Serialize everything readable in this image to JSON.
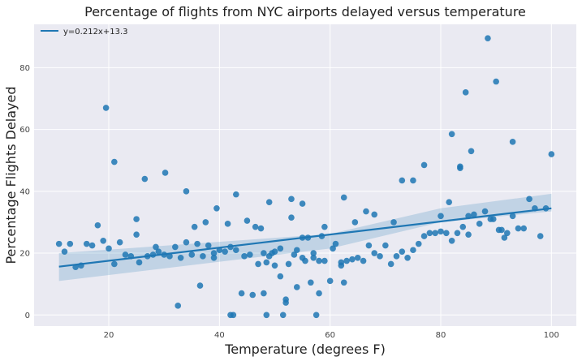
{
  "chart_data": {
    "type": "scatter",
    "title": "Percentage of flights from NYC airports delayed versus temperature",
    "xlabel": "Temperature (degrees F)",
    "ylabel": "Percentage Flights Delayed",
    "xlim": [
      6.5,
      104.5
    ],
    "ylim": [
      -3.6,
      94
    ],
    "xticks": [
      20,
      40,
      60,
      80,
      100
    ],
    "yticks": [
      0,
      20,
      40,
      60,
      80
    ],
    "grid": true,
    "legend": {
      "position": "top-left",
      "entries": [
        "y=0.212x+13.3"
      ]
    },
    "colors": {
      "background": "#EAEAF2",
      "grid": "#FFFFFF",
      "points": "#1F77B4",
      "line": "#1F77B4",
      "band": "#1F77B4"
    },
    "regression": {
      "slope": 0.212,
      "intercept": 13.3,
      "x_range": [
        11,
        100
      ],
      "ci_low": [
        11.0,
        21.5,
        30.0,
        33.5
      ],
      "ci_high": [
        20.0,
        26.2,
        34.5,
        39.2
      ],
      "ci_x": [
        11,
        60,
        80,
        100
      ]
    },
    "points": [
      [
        11,
        23
      ],
      [
        12,
        20.5
      ],
      [
        13,
        23
      ],
      [
        14,
        15.5
      ],
      [
        15,
        16
      ],
      [
        16,
        23
      ],
      [
        17,
        22.5
      ],
      [
        18,
        29
      ],
      [
        19,
        24
      ],
      [
        19.5,
        67
      ],
      [
        20,
        21.5
      ],
      [
        21,
        16.5
      ],
      [
        21,
        49.5
      ],
      [
        22,
        23.5
      ],
      [
        23,
        19.5
      ],
      [
        24,
        19
      ],
      [
        25,
        31
      ],
      [
        25,
        26
      ],
      [
        25.5,
        17
      ],
      [
        26.5,
        44
      ],
      [
        27,
        19
      ],
      [
        28,
        19.5
      ],
      [
        28.5,
        22
      ],
      [
        29,
        20.5
      ],
      [
        30,
        19.5
      ],
      [
        30.2,
        46
      ],
      [
        31,
        19
      ],
      [
        32,
        22
      ],
      [
        32.5,
        3
      ],
      [
        33,
        18.5
      ],
      [
        34,
        23.5
      ],
      [
        34,
        40
      ],
      [
        35,
        19.5
      ],
      [
        35.5,
        28.5
      ],
      [
        36,
        23
      ],
      [
        36.5,
        9.5
      ],
      [
        37,
        19
      ],
      [
        37.5,
        30
      ],
      [
        38,
        22.5
      ],
      [
        39,
        18.5
      ],
      [
        39,
        20
      ],
      [
        39.5,
        34.5
      ],
      [
        40,
        21
      ],
      [
        41,
        20.5
      ],
      [
        41.5,
        29.5
      ],
      [
        42,
        22
      ],
      [
        42,
        0
      ],
      [
        42.5,
        0
      ],
      [
        43,
        39
      ],
      [
        43,
        21
      ],
      [
        44,
        7
      ],
      [
        44.5,
        19
      ],
      [
        45,
        30.5
      ],
      [
        45.5,
        19.5
      ],
      [
        46,
        6.5
      ],
      [
        46.5,
        28.5
      ],
      [
        47,
        16.5
      ],
      [
        47.5,
        28
      ],
      [
        48,
        20
      ],
      [
        48,
        7
      ],
      [
        48.5,
        17
      ],
      [
        48.5,
        0
      ],
      [
        49,
        36.5
      ],
      [
        49,
        19
      ],
      [
        49.5,
        20
      ],
      [
        50,
        16
      ],
      [
        50,
        20.5
      ],
      [
        51,
        12.5
      ],
      [
        51,
        21.5
      ],
      [
        51.5,
        0
      ],
      [
        52,
        4
      ],
      [
        52,
        5
      ],
      [
        52.5,
        16.5
      ],
      [
        53,
        37.5
      ],
      [
        53,
        31.5
      ],
      [
        53.5,
        19.5
      ],
      [
        54,
        9
      ],
      [
        54,
        21
      ],
      [
        55,
        18.5
      ],
      [
        55,
        36
      ],
      [
        55,
        25
      ],
      [
        55.5,
        17.5
      ],
      [
        56,
        25
      ],
      [
        56.5,
        10.5
      ],
      [
        57,
        18.5
      ],
      [
        57,
        20
      ],
      [
        57.5,
        0
      ],
      [
        58,
        7
      ],
      [
        58,
        17.5
      ],
      [
        58.5,
        25.5
      ],
      [
        59,
        17.5
      ],
      [
        59,
        28.5
      ],
      [
        60,
        11
      ],
      [
        60.5,
        21.5
      ],
      [
        61,
        23
      ],
      [
        62,
        16
      ],
      [
        62,
        17
      ],
      [
        62.5,
        10.5
      ],
      [
        62.5,
        38
      ],
      [
        63,
        17.5
      ],
      [
        64,
        18
      ],
      [
        64.5,
        30
      ],
      [
        65,
        18.5
      ],
      [
        66,
        17.5
      ],
      [
        66.5,
        33.5
      ],
      [
        67,
        22.5
      ],
      [
        68,
        20
      ],
      [
        68,
        32.5
      ],
      [
        69,
        19
      ],
      [
        70,
        22.5
      ],
      [
        71,
        16.5
      ],
      [
        71.5,
        30
      ],
      [
        72,
        19
      ],
      [
        73,
        20.5
      ],
      [
        73,
        43.5
      ],
      [
        74,
        18.5
      ],
      [
        75,
        21
      ],
      [
        75,
        43.5
      ],
      [
        76,
        23
      ],
      [
        77,
        25.5
      ],
      [
        77,
        48.5
      ],
      [
        78,
        26.5
      ],
      [
        79,
        26.5
      ],
      [
        80,
        32
      ],
      [
        80,
        27
      ],
      [
        81,
        26.5
      ],
      [
        81.5,
        36.5
      ],
      [
        82,
        24
      ],
      [
        82,
        58.5
      ],
      [
        83,
        26.5
      ],
      [
        83.5,
        48
      ],
      [
        83.5,
        47.5
      ],
      [
        84,
        28.5
      ],
      [
        84.5,
        72
      ],
      [
        85,
        32
      ],
      [
        85,
        26
      ],
      [
        85.5,
        53
      ],
      [
        86,
        32.5
      ],
      [
        87,
        29.5
      ],
      [
        88,
        33.5
      ],
      [
        88.5,
        89.5
      ],
      [
        89,
        31
      ],
      [
        89.5,
        31
      ],
      [
        90,
        75.5
      ],
      [
        90.5,
        27.5
      ],
      [
        91,
        27.5
      ],
      [
        91.5,
        25
      ],
      [
        92,
        26.5
      ],
      [
        93,
        32
      ],
      [
        93,
        56
      ],
      [
        94,
        28
      ],
      [
        95,
        28
      ],
      [
        96,
        37.5
      ],
      [
        97,
        34.5
      ],
      [
        98,
        25.5
      ],
      [
        99,
        34.5
      ],
      [
        100,
        52
      ]
    ]
  }
}
